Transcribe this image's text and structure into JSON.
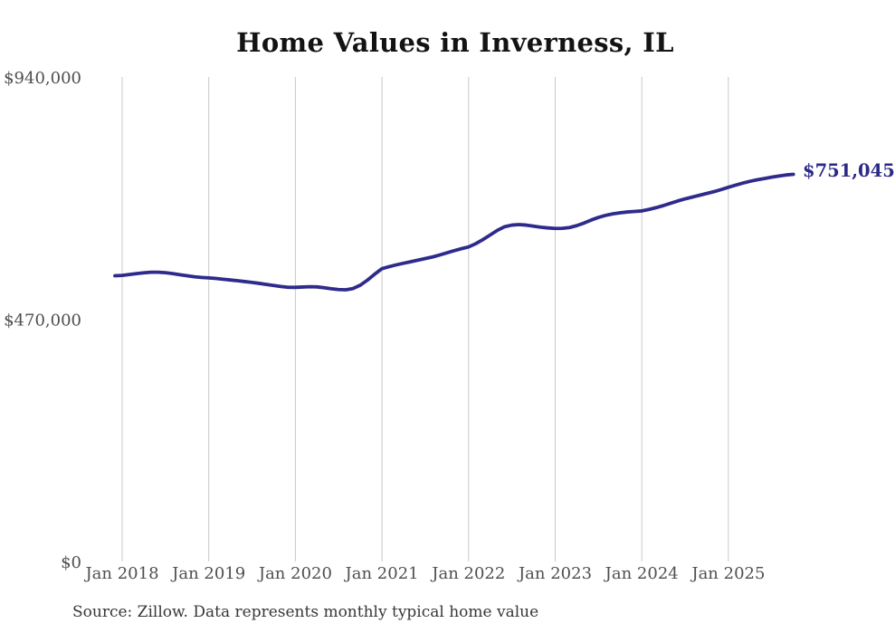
{
  "chart": {
    "title": "Home Values in Inverness, IL",
    "end_label": "$751,045",
    "source_note": "Source: Zillow. Data represents monthly typical home value",
    "colors": {
      "line": "#2e2b8c",
      "end_label": "#2b2987",
      "gridline": "#c9c9c9",
      "tick_text": "#4f4f4f",
      "title_text": "#131313",
      "source_text": "#373737"
    }
  },
  "chart_data": {
    "type": "line",
    "title": "Home Values in Inverness, IL",
    "series_name": "Monthly typical home value (USD)",
    "legend": "none",
    "grid": "vertical-only",
    "ylim": [
      0,
      940000
    ],
    "y_ticks": [
      {
        "label": "$0",
        "value": 0
      },
      {
        "label": "$470,000",
        "value": 470000
      },
      {
        "label": "$940,000",
        "value": 940000
      }
    ],
    "x_tick_labels": [
      "Jan 2018",
      "Jan 2019",
      "Jan 2020",
      "Jan 2021",
      "Jan 2022",
      "Jan 2023",
      "Jan 2024",
      "Jan 2025"
    ],
    "x_tick_point_indices": [
      1,
      13,
      25,
      37,
      49,
      61,
      73,
      85
    ],
    "last_value_annotation": "$751,045",
    "x": [
      "2017-12",
      "2018-01",
      "2018-02",
      "2018-03",
      "2018-04",
      "2018-05",
      "2018-06",
      "2018-07",
      "2018-08",
      "2018-09",
      "2018-10",
      "2018-11",
      "2018-12",
      "2019-01",
      "2019-02",
      "2019-03",
      "2019-04",
      "2019-05",
      "2019-06",
      "2019-07",
      "2019-08",
      "2019-09",
      "2019-10",
      "2019-11",
      "2019-12",
      "2020-01",
      "2020-02",
      "2020-03",
      "2020-04",
      "2020-05",
      "2020-06",
      "2020-07",
      "2020-08",
      "2020-09",
      "2020-10",
      "2020-11",
      "2020-12",
      "2021-01",
      "2021-02",
      "2021-03",
      "2021-04",
      "2021-05",
      "2021-06",
      "2021-07",
      "2021-08",
      "2021-09",
      "2021-10",
      "2021-11",
      "2021-12",
      "2022-01",
      "2022-02",
      "2022-03",
      "2022-04",
      "2022-05",
      "2022-06",
      "2022-07",
      "2022-08",
      "2022-09",
      "2022-10",
      "2022-11",
      "2022-12",
      "2023-01",
      "2023-02",
      "2023-03",
      "2023-04",
      "2023-05",
      "2023-06",
      "2023-07",
      "2023-08",
      "2023-09",
      "2023-10",
      "2023-11",
      "2023-12",
      "2024-01",
      "2024-02",
      "2024-03",
      "2024-04",
      "2024-05",
      "2024-06",
      "2024-07",
      "2024-08",
      "2024-09",
      "2024-10",
      "2024-11",
      "2024-12",
      "2025-01",
      "2025-02",
      "2025-03",
      "2025-04",
      "2025-05",
      "2025-06",
      "2025-07",
      "2025-08",
      "2025-09",
      "2025-10"
    ],
    "values": [
      554300,
      555000,
      556700,
      558500,
      560100,
      561200,
      561200,
      560200,
      558500,
      556400,
      554300,
      552300,
      551000,
      550100,
      549000,
      547600,
      546100,
      544600,
      543000,
      541400,
      539500,
      537500,
      535400,
      533400,
      531900,
      531800,
      532500,
      533100,
      532700,
      531100,
      529100,
      527500,
      527100,
      529600,
      536100,
      546000,
      557500,
      568100,
      572000,
      575500,
      578600,
      581600,
      584600,
      587700,
      590800,
      594600,
      598800,
      603000,
      606800,
      610200,
      616600,
      624600,
      633500,
      642500,
      649500,
      652600,
      653600,
      652600,
      650600,
      648500,
      647100,
      646100,
      646300,
      647900,
      651600,
      656600,
      662500,
      667500,
      671500,
      674500,
      676500,
      678100,
      679100,
      680100,
      683000,
      686500,
      690500,
      695000,
      699500,
      703500,
      707000,
      710500,
      714000,
      717500,
      721500,
      726000,
      730100,
      734100,
      737600,
      740600,
      743100,
      745600,
      747900,
      749900,
      751045
    ]
  }
}
